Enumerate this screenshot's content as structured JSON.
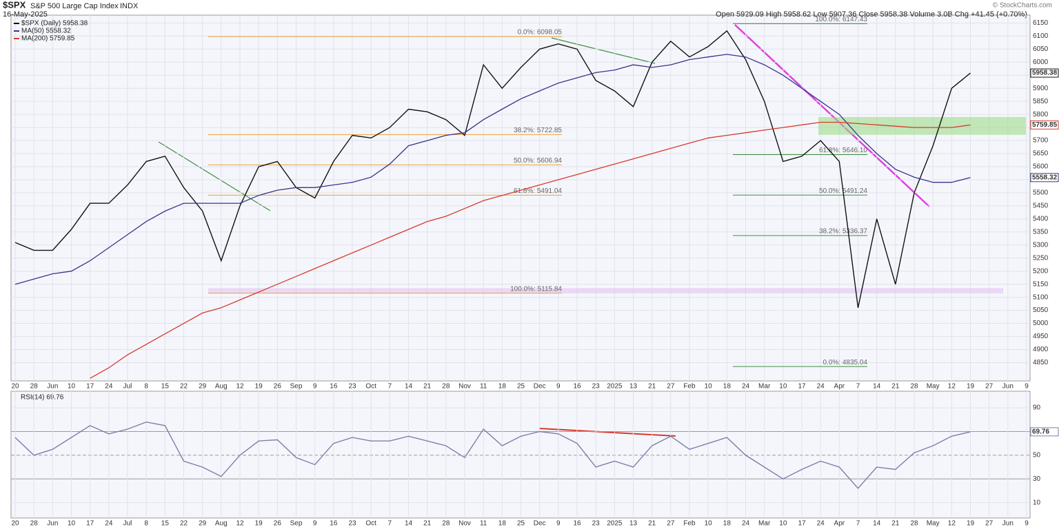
{
  "chart_data": [
    {
      "type": "line",
      "title": "$SPX",
      "subtitle": "S&P 500 Large Cap Index",
      "exchange": "INDX",
      "date": "16-May-2025",
      "quote": "Open 5929.09  High 5958.62  Low 5907.36  Close 5958.38  Volume 3.0B  Chg +41.45 (+0.70%)",
      "credit": "© StockCharts.com",
      "categories": [
        "20",
        "28",
        "Jun",
        "10",
        "17",
        "24",
        "Jul",
        "8",
        "15",
        "22",
        "29",
        "Aug",
        "12",
        "19",
        "26",
        "Sep",
        "9",
        "16",
        "23",
        "Oct",
        "7",
        "14",
        "21",
        "28",
        "Nov",
        "11",
        "18",
        "25",
        "Dec",
        "9",
        "16",
        "23",
        "2025",
        "13",
        "21",
        "27",
        "Feb",
        "10",
        "18",
        "24",
        "Mar",
        "10",
        "17",
        "24",
        "Apr",
        "7",
        "14",
        "21",
        "28",
        "May",
        "12",
        "19",
        "27",
        "Jun",
        "9"
      ],
      "series": [
        {
          "name": "$SPX (Daily) 5958.38",
          "color": "#111111",
          "values": [
            5310,
            5280,
            5280,
            5360,
            5460,
            5460,
            5530,
            5620,
            5640,
            5520,
            5430,
            5240,
            5450,
            5600,
            5620,
            5520,
            5480,
            5620,
            5720,
            5710,
            5750,
            5820,
            5810,
            5780,
            5720,
            5990,
            5900,
            5980,
            6050,
            6070,
            6050,
            5930,
            5890,
            5830,
            6000,
            6080,
            6020,
            6060,
            6120,
            6010,
            5850,
            5620,
            5640,
            5700,
            5620,
            5060,
            5400,
            5150,
            5500,
            5680,
            5900,
            5958.38,
            null,
            null,
            null
          ]
        },
        {
          "name": "MA(50) 5558.32",
          "color": "#34348c",
          "values": [
            5150,
            5170,
            5190,
            5200,
            5240,
            5290,
            5340,
            5390,
            5430,
            5460,
            5460,
            5460,
            5460,
            5490,
            5510,
            5520,
            5520,
            5530,
            5540,
            5560,
            5610,
            5680,
            5700,
            5720,
            5730,
            5780,
            5820,
            5860,
            5890,
            5920,
            5940,
            5960,
            5970,
            5990,
            5980,
            5990,
            6010,
            6020,
            6030,
            6020,
            5990,
            5950,
            5900,
            5850,
            5800,
            5720,
            5650,
            5590,
            5560,
            5540,
            5540,
            5558.32,
            null,
            null,
            null
          ]
        },
        {
          "name": "MA(200) 5759.85",
          "color": "#d8392b",
          "values": [
            null,
            null,
            null,
            null,
            4790,
            4830,
            4880,
            4920,
            4960,
            5000,
            5040,
            5060,
            5090,
            5120,
            5150,
            5180,
            5210,
            5240,
            5270,
            5300,
            5330,
            5360,
            5390,
            5410,
            5440,
            5470,
            5490,
            5510,
            5530,
            5550,
            5570,
            5590,
            5610,
            5630,
            5650,
            5670,
            5690,
            5710,
            5720,
            5730,
            5740,
            5750,
            5760,
            5770,
            5770,
            5765,
            5760,
            5755,
            5750,
            5750,
            5750,
            5759.85,
            null,
            null,
            null
          ]
        }
      ],
      "ylim": [
        4780,
        6180
      ],
      "yticks": [
        4850,
        4900,
        4950,
        5000,
        5050,
        5100,
        5150,
        5200,
        5250,
        5300,
        5350,
        5400,
        5450,
        5500,
        5550,
        5600,
        5650,
        5700,
        5750,
        5800,
        5850,
        5900,
        5950,
        6000,
        6050,
        6100,
        6150
      ],
      "grid": true,
      "fib_levels": [
        [
          {
            "label": "0.0%: 6098.05",
            "value": 6098.05,
            "color": "#f0a030"
          },
          {
            "label": "38.2%: 5722.85",
            "value": 5722.85,
            "color": "#f0a030"
          },
          {
            "label": "50.0%: 5606.94",
            "value": 5606.94,
            "color": "#f0a030"
          },
          {
            "label": "61.8%: 5491.04",
            "value": 5491.04,
            "color": "#f0a030"
          },
          {
            "label": "100.0%: 5115.84",
            "value": 5115.84,
            "color": "#f0a030"
          }
        ],
        [
          {
            "label": "100.0%: 6147.43",
            "value": 6147.43,
            "color": "#3c8c3c"
          },
          {
            "label": "61.8%: 5646.10",
            "value": 5646.1,
            "color": "#3c8c3c"
          },
          {
            "label": "50.0%: 5491.24",
            "value": 5491.24,
            "color": "#3c8c3c"
          },
          {
            "label": "38.2%: 5336.37",
            "value": 5336.37,
            "color": "#3c8c3c"
          },
          {
            "label": "0.0%: 4835.04",
            "value": 4835.04,
            "color": "#3c8c3c"
          }
        ]
      ],
      "zones": [
        {
          "range": [
            5722,
            5790
          ],
          "color": "#9edc8a"
        },
        {
          "range": [
            5115,
            5135
          ],
          "color": "#e2c4f4"
        }
      ]
    },
    {
      "type": "line",
      "title": "RSI(14) 69.76",
      "categories": [
        "20",
        "28",
        "Jun",
        "10",
        "17",
        "24",
        "Jul",
        "8",
        "15",
        "22",
        "29",
        "Aug",
        "12",
        "19",
        "26",
        "Sep",
        "9",
        "16",
        "23",
        "Oct",
        "7",
        "14",
        "21",
        "28",
        "Nov",
        "11",
        "18",
        "25",
        "Dec",
        "9",
        "16",
        "23",
        "2025",
        "13",
        "21",
        "27",
        "Feb",
        "10",
        "18",
        "24",
        "Mar",
        "10",
        "17",
        "24",
        "Apr",
        "7",
        "14",
        "21",
        "28",
        "May",
        "12",
        "19",
        "27",
        "Jun",
        "9"
      ],
      "series": [
        {
          "name": "RSI(14)",
          "color": "#7a7fa8",
          "values": [
            65,
            50,
            55,
            65,
            75,
            68,
            72,
            78,
            75,
            45,
            40,
            32,
            50,
            62,
            63,
            48,
            42,
            60,
            65,
            62,
            62,
            66,
            62,
            58,
            48,
            72,
            58,
            66,
            70,
            68,
            60,
            40,
            45,
            40,
            58,
            66,
            55,
            60,
            65,
            50,
            40,
            30,
            38,
            45,
            40,
            22,
            40,
            38,
            52,
            58,
            66,
            69.76,
            null,
            null,
            null
          ]
        }
      ],
      "ylim": [
        -3,
        104
      ],
      "yticks": [
        10,
        30,
        50,
        70,
        90
      ],
      "grid": true
    }
  ]
}
